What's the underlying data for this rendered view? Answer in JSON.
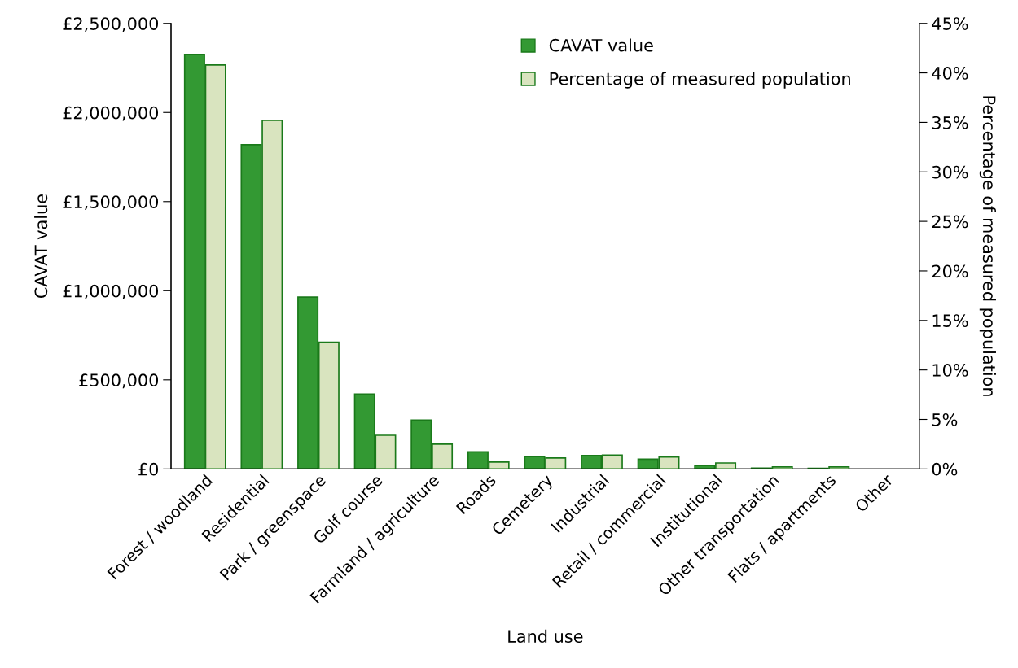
{
  "chart_data": {
    "type": "bar",
    "xlabel": "Land use",
    "ylabel": "CAVAT value",
    "y2label": "Percentage of measured population",
    "categories": [
      "Forest / woodland",
      "Residential",
      "Park / greenspace",
      "Golf course",
      "Farmland / agriculture",
      "Roads",
      "Cemetery",
      "Industrial",
      "Retail / commercial",
      "Institutional",
      "Other transportation",
      "Flats / apartments",
      "Other"
    ],
    "series": [
      {
        "name": "CAVAT value",
        "color": "#339933",
        "values": [
          2326000,
          1819000,
          964000,
          420000,
          274000,
          96000,
          69000,
          75000,
          55000,
          19000,
          5000,
          3000,
          null
        ]
      },
      {
        "name": "Percentage of measured population",
        "color": "#d9e4bf",
        "axis": "y2",
        "values": [
          40.8,
          35.2,
          12.8,
          3.4,
          2.5,
          0.7,
          1.1,
          1.4,
          1.2,
          0.6,
          0.2,
          0.2,
          null
        ]
      }
    ],
    "ylim": [
      0,
      2500000
    ],
    "yticks": [
      {
        "value": 0,
        "label": "£0"
      },
      {
        "value": 500000,
        "label": "£500,000"
      },
      {
        "value": 1000000,
        "label": "£1,000,000"
      },
      {
        "value": 1500000,
        "label": "£1,500,000"
      },
      {
        "value": 2000000,
        "label": "£2,000,000"
      },
      {
        "value": 2500000,
        "label": "£2,500,000"
      }
    ],
    "y2lim": [
      0,
      45
    ],
    "y2ticks": [
      {
        "value": 0,
        "label": "0%"
      },
      {
        "value": 5,
        "label": "5%"
      },
      {
        "value": 10,
        "label": "10%"
      },
      {
        "value": 15,
        "label": "15%"
      },
      {
        "value": 20,
        "label": "20%"
      },
      {
        "value": 25,
        "label": "25%"
      },
      {
        "value": 30,
        "label": "30%"
      },
      {
        "value": 35,
        "label": "35%"
      },
      {
        "value": 40,
        "label": "40%"
      },
      {
        "value": 45,
        "label": "45%"
      }
    ],
    "grid": false,
    "legend": "top right"
  }
}
